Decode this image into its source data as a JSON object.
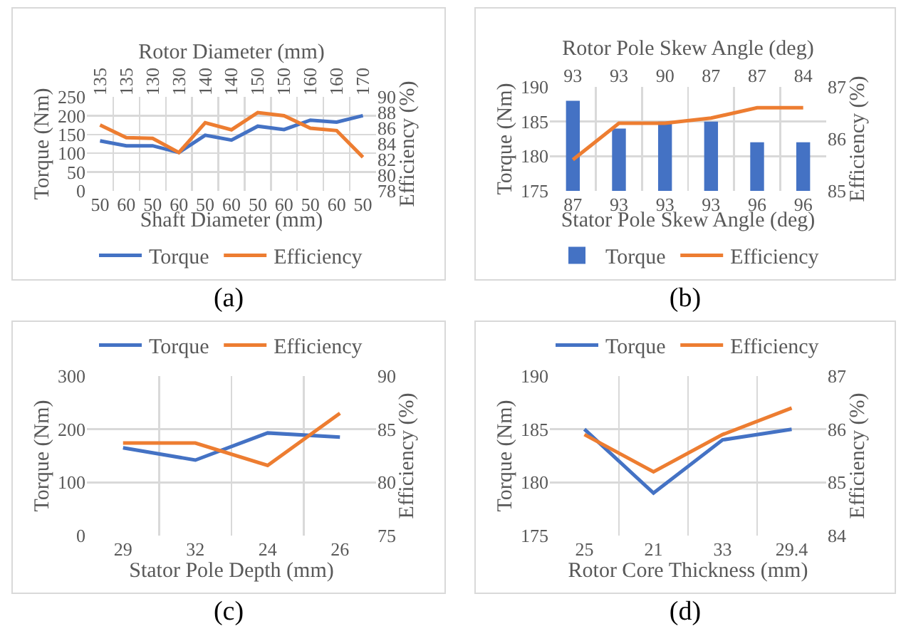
{
  "chart_data": [
    {
      "type": "line",
      "categories": [
        "50",
        "60",
        "50",
        "60",
        "50",
        "60",
        "50",
        "60",
        "50",
        "60",
        "50"
      ],
      "xlabel": "Shaft Diameter (mm)",
      "x2label": "Rotor Diameter (mm)",
      "ylabel": "Torque (Nm)",
      "y2label": "Efficiency (%)",
      "ylim": [
        0,
        250
      ],
      "yticks": [
        0,
        50,
        100,
        150,
        200,
        250
      ],
      "y2lim": [
        78,
        90
      ],
      "y2ticks": [
        78,
        80,
        82,
        84,
        86,
        88,
        90
      ],
      "grid": true,
      "legend": "bottom",
      "annotations": [
        "(a)",
        "135",
        "135",
        "130",
        "130",
        "140",
        "140",
        "150",
        "150",
        "160",
        "160",
        "170"
      ],
      "series": [
        {
          "name": "Torque",
          "color": "#4472c4",
          "values": [
            133,
            120,
            120,
            102,
            148,
            135,
            172,
            163,
            188,
            183,
            200
          ]
        },
        {
          "name": "Efficiency",
          "color": "#ed7d31",
          "axis": "y2",
          "values": [
            86.4,
            84.8,
            84.7,
            82.9,
            86.7,
            85.8,
            88.0,
            87.6,
            86.0,
            85.7,
            82.3
          ]
        }
      ]
    },
    {
      "type": "bar",
      "categories": [
        "87",
        "93",
        "93",
        "93",
        "96",
        "96"
      ],
      "xlabel": "Stator Pole Skew Angle (deg)",
      "x2label": "Rotor Pole Skew Angle (deg)",
      "ylabel": "Torque (Nm)",
      "y2label": "Efficiency (%)",
      "ylim": [
        175,
        190
      ],
      "yticks": [
        175,
        180,
        185,
        190
      ],
      "y2lim": [
        85,
        87
      ],
      "y2ticks": [
        85,
        86,
        87
      ],
      "grid": true,
      "legend": "bottom",
      "annotations": [
        "(b)",
        "93",
        "93",
        "90",
        "87",
        "87",
        "84"
      ],
      "series": [
        {
          "name": "Torque",
          "color": "#4472c4",
          "values": [
            188,
            184,
            185,
            185,
            182,
            182
          ]
        },
        {
          "name": "Efficiency",
          "type": "line",
          "color": "#ed7d31",
          "axis": "y2",
          "values": [
            85.6,
            86.3,
            86.3,
            86.4,
            86.6,
            86.6
          ]
        }
      ]
    },
    {
      "type": "line",
      "categories": [
        "29",
        "32",
        "24",
        "26"
      ],
      "xlabel": "Stator Pole Depth (mm)",
      "ylabel": "Torque (Nm)",
      "y2label": "Efficiency (%)",
      "ylim": [
        0,
        300
      ],
      "yticks": [
        0,
        100,
        200,
        300
      ],
      "y2lim": [
        75,
        90
      ],
      "y2ticks": [
        75,
        80,
        85,
        90
      ],
      "grid": true,
      "legend": "top",
      "annotations": [
        "(c)"
      ],
      "series": [
        {
          "name": "Torque",
          "color": "#4472c4",
          "values": [
            165,
            142,
            193,
            185
          ]
        },
        {
          "name": "Efficiency",
          "color": "#ed7d31",
          "axis": "y2",
          "values": [
            83.7,
            83.7,
            81.6,
            86.5
          ]
        }
      ]
    },
    {
      "type": "line",
      "categories": [
        "25",
        "21",
        "33",
        "29.4"
      ],
      "xlabel": "Rotor Core Thickness (mm)",
      "ylabel": "Torque (Nm)",
      "y2label": "Efficiency (%)",
      "ylim": [
        175,
        190
      ],
      "yticks": [
        175,
        180,
        185,
        190
      ],
      "y2lim": [
        84,
        87
      ],
      "y2ticks": [
        84,
        85,
        86,
        87
      ],
      "grid": true,
      "legend": "top",
      "annotations": [
        "(d)"
      ],
      "series": [
        {
          "name": "Torque",
          "color": "#4472c4",
          "values": [
            185,
            179,
            184,
            185
          ]
        },
        {
          "name": "Efficiency",
          "color": "#ed7d31",
          "axis": "y2",
          "values": [
            85.9,
            85.2,
            85.9,
            86.4
          ]
        }
      ]
    }
  ]
}
